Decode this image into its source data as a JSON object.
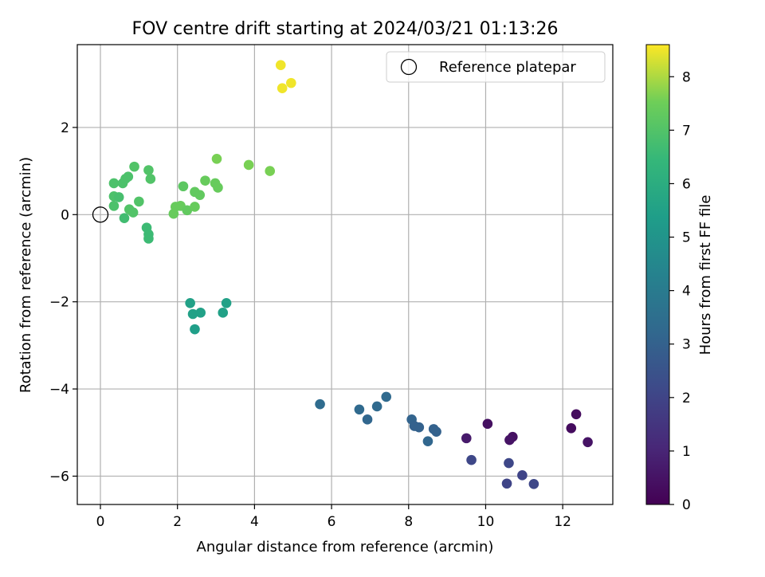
{
  "chart_data": {
    "type": "scatter",
    "title": "FOV centre drift starting at 2024/03/21 01:13:26",
    "xlabel": "Angular distance from reference (arcmin)",
    "ylabel": "Rotation from reference (arcmin)",
    "xlim": [
      -0.6,
      13.3
    ],
    "ylim": [
      -6.65,
      3.9
    ],
    "x_ticks": [
      0,
      2,
      4,
      6,
      8,
      10,
      12
    ],
    "x_tick_labels": [
      "0",
      "2",
      "4",
      "6",
      "8",
      "10",
      "12"
    ],
    "y_ticks": [
      -6,
      -4,
      -2,
      0,
      2
    ],
    "y_tick_labels": [
      "−6",
      "−4",
      "−2",
      "0",
      "2"
    ],
    "grid": true,
    "legend": {
      "placement": "top-right",
      "entries": [
        {
          "label": "Reference platepar",
          "marker": "open-circle"
        }
      ]
    },
    "reference_point": {
      "x": 0,
      "y": 0
    },
    "colorbar": {
      "label": "Hours from first FF file",
      "colormap": "viridis",
      "range": [
        0,
        8.6
      ],
      "ticks": [
        0,
        1,
        2,
        3,
        4,
        5,
        6,
        7,
        8
      ],
      "tick_labels": [
        "0",
        "1",
        "2",
        "3",
        "4",
        "5",
        "6",
        "7",
        "8"
      ]
    },
    "points": [
      {
        "x": 12.35,
        "y": -4.58,
        "c": 0.3
      },
      {
        "x": 12.22,
        "y": -4.9,
        "c": 0.3
      },
      {
        "x": 12.65,
        "y": -5.22,
        "c": 0.5
      },
      {
        "x": 10.05,
        "y": -4.8,
        "c": 0.4
      },
      {
        "x": 10.7,
        "y": -5.1,
        "c": 0.4
      },
      {
        "x": 10.62,
        "y": -5.17,
        "c": 0.5
      },
      {
        "x": 9.5,
        "y": -5.13,
        "c": 0.7
      },
      {
        "x": 9.63,
        "y": -5.63,
        "c": 2.1
      },
      {
        "x": 10.6,
        "y": -5.7,
        "c": 2.1
      },
      {
        "x": 10.95,
        "y": -5.98,
        "c": 2.0
      },
      {
        "x": 10.55,
        "y": -6.17,
        "c": 2.0
      },
      {
        "x": 11.25,
        "y": -6.18,
        "c": 2.1
      },
      {
        "x": 5.7,
        "y": -4.35,
        "c": 3.4
      },
      {
        "x": 6.72,
        "y": -4.47,
        "c": 3.3
      },
      {
        "x": 6.93,
        "y": -4.7,
        "c": 3.2
      },
      {
        "x": 7.18,
        "y": -4.4,
        "c": 3.3
      },
      {
        "x": 7.42,
        "y": -4.18,
        "c": 3.3
      },
      {
        "x": 8.08,
        "y": -4.7,
        "c": 3.1
      },
      {
        "x": 8.15,
        "y": -4.85,
        "c": 3.0
      },
      {
        "x": 8.27,
        "y": -4.88,
        "c": 3.0
      },
      {
        "x": 8.5,
        "y": -5.2,
        "c": 3.2
      },
      {
        "x": 8.65,
        "y": -4.92,
        "c": 3.0
      },
      {
        "x": 8.72,
        "y": -4.98,
        "c": 3.0
      },
      {
        "x": 2.33,
        "y": -2.03,
        "c": 5.5
      },
      {
        "x": 2.4,
        "y": -2.28,
        "c": 5.5
      },
      {
        "x": 2.6,
        "y": -2.25,
        "c": 5.5
      },
      {
        "x": 2.45,
        "y": -2.63,
        "c": 5.4
      },
      {
        "x": 3.18,
        "y": -2.25,
        "c": 5.5
      },
      {
        "x": 3.27,
        "y": -2.03,
        "c": 5.5
      },
      {
        "x": 0.35,
        "y": 0.72,
        "c": 6.9
      },
      {
        "x": 0.35,
        "y": 0.42,
        "c": 6.9
      },
      {
        "x": 0.48,
        "y": 0.4,
        "c": 6.8
      },
      {
        "x": 0.35,
        "y": 0.2,
        "c": 6.9
      },
      {
        "x": 0.58,
        "y": 0.72,
        "c": 6.9
      },
      {
        "x": 0.65,
        "y": 0.82,
        "c": 6.9
      },
      {
        "x": 0.72,
        "y": 0.87,
        "c": 6.9
      },
      {
        "x": 0.88,
        "y": 1.1,
        "c": 7.0
      },
      {
        "x": 0.75,
        "y": 0.12,
        "c": 7.0
      },
      {
        "x": 0.85,
        "y": 0.05,
        "c": 7.0
      },
      {
        "x": 0.62,
        "y": -0.08,
        "c": 6.7
      },
      {
        "x": 1.0,
        "y": 0.3,
        "c": 7.0
      },
      {
        "x": 1.2,
        "y": -0.3,
        "c": 6.6
      },
      {
        "x": 1.25,
        "y": -0.45,
        "c": 6.6
      },
      {
        "x": 1.25,
        "y": -0.55,
        "c": 6.6
      },
      {
        "x": 1.25,
        "y": 1.02,
        "c": 7.0
      },
      {
        "x": 1.3,
        "y": 0.82,
        "c": 7.0
      },
      {
        "x": 1.9,
        "y": 0.02,
        "c": 7.4
      },
      {
        "x": 1.95,
        "y": 0.18,
        "c": 7.4
      },
      {
        "x": 2.08,
        "y": 0.2,
        "c": 7.4
      },
      {
        "x": 2.15,
        "y": 0.65,
        "c": 7.2
      },
      {
        "x": 2.25,
        "y": 0.1,
        "c": 7.3
      },
      {
        "x": 2.45,
        "y": 0.18,
        "c": 7.4
      },
      {
        "x": 2.45,
        "y": 0.52,
        "c": 7.3
      },
      {
        "x": 2.58,
        "y": 0.45,
        "c": 7.3
      },
      {
        "x": 2.72,
        "y": 0.78,
        "c": 7.4
      },
      {
        "x": 2.98,
        "y": 0.72,
        "c": 7.4
      },
      {
        "x": 3.05,
        "y": 0.62,
        "c": 7.4
      },
      {
        "x": 3.02,
        "y": 1.28,
        "c": 7.6
      },
      {
        "x": 3.85,
        "y": 1.14,
        "c": 7.6
      },
      {
        "x": 4.4,
        "y": 1.0,
        "c": 7.6
      },
      {
        "x": 4.68,
        "y": 3.43,
        "c": 8.5
      },
      {
        "x": 4.95,
        "y": 3.02,
        "c": 8.5
      },
      {
        "x": 4.72,
        "y": 2.9,
        "c": 8.5
      }
    ]
  }
}
